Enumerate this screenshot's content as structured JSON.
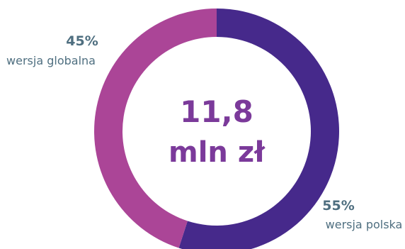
{
  "chart_data": {
    "type": "pie",
    "donut": true,
    "center_value": "11,8",
    "center_unit": "mln zł",
    "slices": [
      {
        "label": "wersja polska",
        "value": 55,
        "value_label": "55%",
        "color": "#46298b"
      },
      {
        "label": "wersja globalna",
        "value": 45,
        "value_label": "45%",
        "color": "#ab4597"
      }
    ],
    "label_color": "#4f6f80",
    "center_color": "#7b3a9a"
  }
}
